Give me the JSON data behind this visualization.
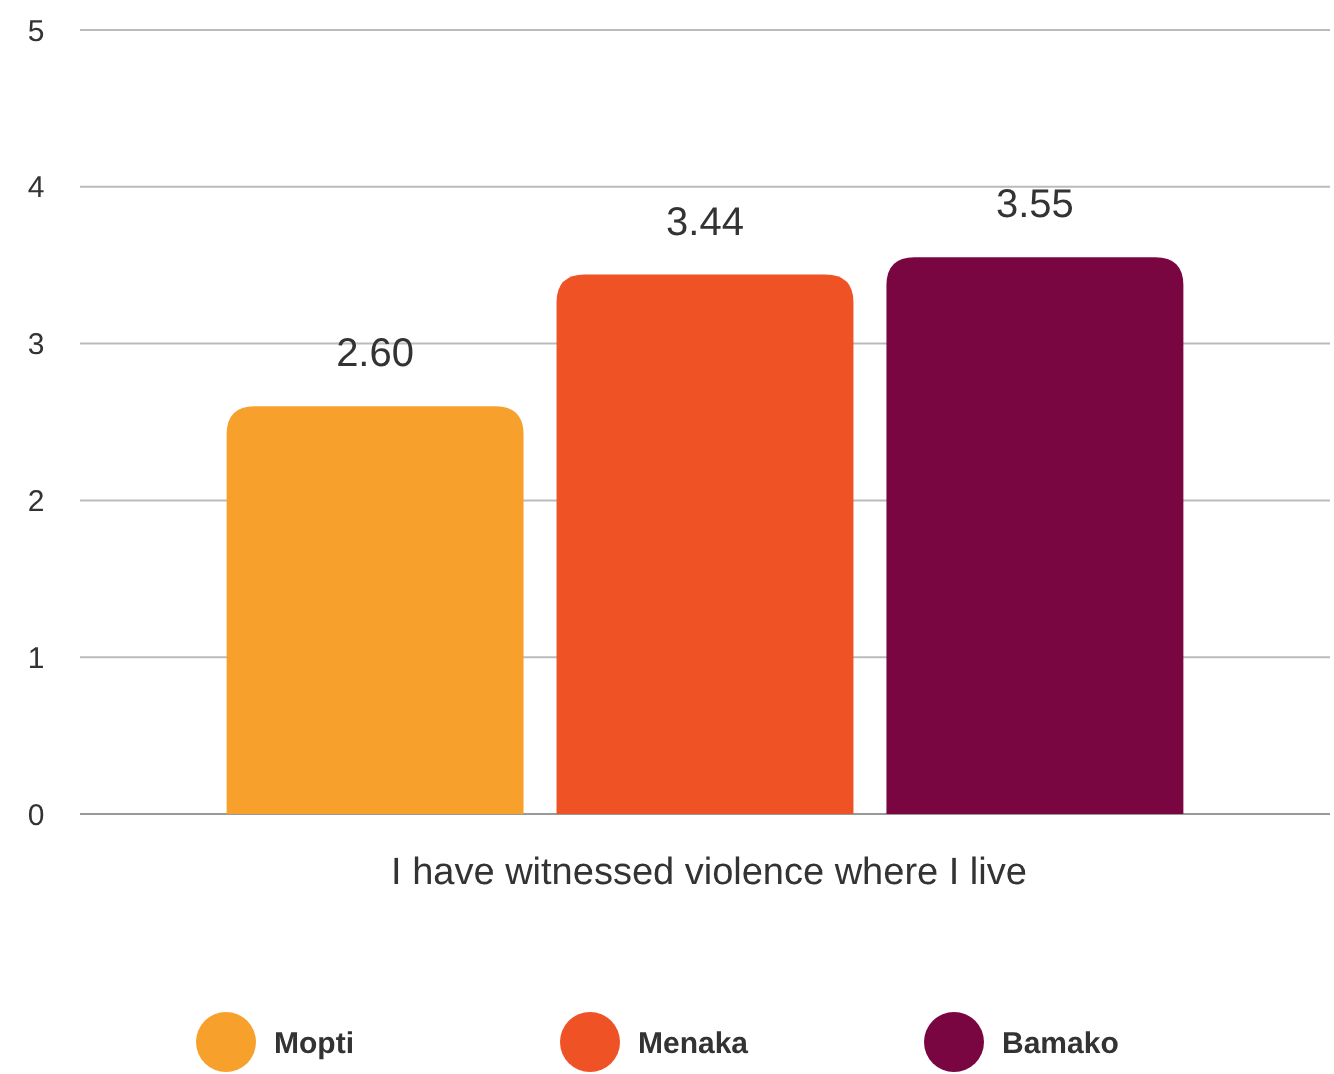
{
  "chart_data": {
    "type": "bar",
    "xlabel": "I have witnessed violence where I live",
    "categories": [
      null
    ],
    "series": [
      {
        "name": "Mopti",
        "color": "#f7a12c",
        "values": [
          2.6
        ],
        "value_labels": [
          "2.60"
        ]
      },
      {
        "name": "Menaka",
        "color": "#ef5224",
        "values": [
          3.44
        ],
        "value_labels": [
          "3.44"
        ]
      },
      {
        "name": "Bamako",
        "color": "#790640",
        "values": [
          3.55
        ],
        "value_labels": [
          "3.55"
        ]
      }
    ],
    "ylim": [
      0,
      5
    ],
    "yticks": [
      0,
      1,
      2,
      3,
      4,
      5
    ],
    "grid": "y",
    "legend": "bottom"
  }
}
